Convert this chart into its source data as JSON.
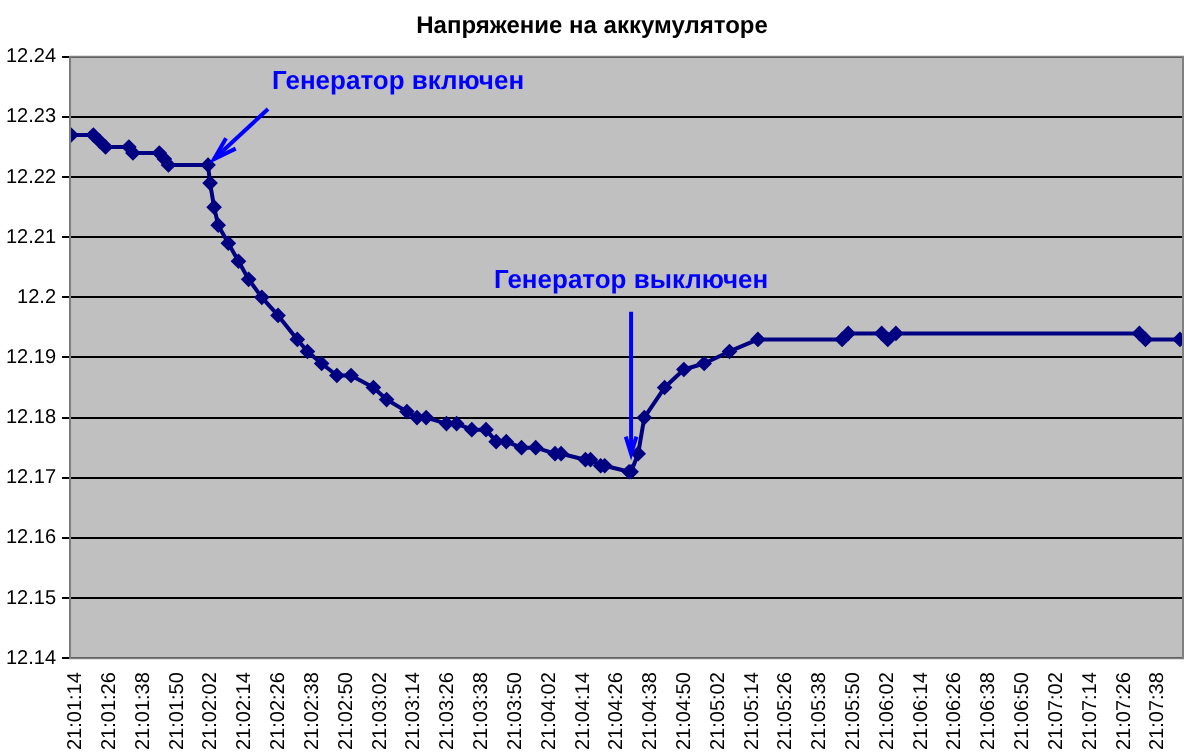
{
  "chart_data": {
    "type": "line",
    "title": "Напряжение на аккумуляторе",
    "x": [
      21.0201,
      21.0223,
      21.0229,
      21.0235,
      21.0258,
      21.0262,
      21.0288,
      21.0293,
      21.0297,
      21.0336,
      21.0338,
      21.0342,
      21.0346,
      21.0356,
      21.0366,
      21.0376,
      21.0389,
      21.0405,
      21.0424,
      21.0434,
      21.0448,
      21.0463,
      21.0477,
      21.0499,
      21.0512,
      21.0532,
      21.0542,
      21.0551,
      21.0571,
      21.0581,
      21.0596,
      21.061,
      21.062,
      21.063,
      21.0645,
      21.0659,
      21.0678,
      21.0684,
      21.0708,
      21.0713,
      21.0723,
      21.0727,
      21.0751,
      21.0753,
      21.076,
      21.0766,
      21.0786,
      21.0805,
      21.0825,
      21.085,
      21.0878,
      21.0961,
      21.0967,
      21.1,
      21.1006,
      21.1014,
      21.1254,
      21.126,
      21.1294
    ],
    "series": [
      {
        "color": "#000080",
        "values": [
          12.227,
          12.227,
          12.226,
          12.225,
          12.225,
          12.224,
          12.224,
          12.223,
          12.222,
          12.222,
          12.219,
          12.215,
          12.212,
          12.209,
          12.206,
          12.203,
          12.2,
          12.197,
          12.193,
          12.191,
          12.189,
          12.187,
          12.187,
          12.185,
          12.183,
          12.181,
          12.18,
          12.18,
          12.179,
          12.179,
          12.178,
          12.178,
          12.176,
          12.176,
          12.175,
          12.175,
          12.174,
          12.174,
          12.173,
          12.173,
          12.172,
          12.172,
          12.171,
          12.171,
          12.174,
          12.18,
          12.185,
          12.188,
          12.189,
          12.191,
          12.193,
          12.193,
          12.194,
          12.194,
          12.193,
          12.194,
          12.194,
          12.193,
          12.193
        ]
      }
    ],
    "xlim": [
      21.02,
      21.1297
    ],
    "xticks": [
      {
        "value": 21.02056,
        "label": "21:01:14"
      },
      {
        "value": 21.02389,
        "label": "21:01:26"
      },
      {
        "value": 21.02722,
        "label": "21:01:38"
      },
      {
        "value": 21.03056,
        "label": "21:01:50"
      },
      {
        "value": 21.03389,
        "label": "21:02:02"
      },
      {
        "value": 21.03722,
        "label": "21:02:14"
      },
      {
        "value": 21.04056,
        "label": "21:02:26"
      },
      {
        "value": 21.04389,
        "label": "21:02:38"
      },
      {
        "value": 21.04722,
        "label": "21:02:50"
      },
      {
        "value": 21.05056,
        "label": "21:03:02"
      },
      {
        "value": 21.05389,
        "label": "21:03:14"
      },
      {
        "value": 21.05722,
        "label": "21:03:26"
      },
      {
        "value": 21.06056,
        "label": "21:03:38"
      },
      {
        "value": 21.06389,
        "label": "21:03:50"
      },
      {
        "value": 21.06722,
        "label": "21:04:02"
      },
      {
        "value": 21.07056,
        "label": "21:04:14"
      },
      {
        "value": 21.07389,
        "label": "21:04:26"
      },
      {
        "value": 21.07722,
        "label": "21:04:38"
      },
      {
        "value": 21.08056,
        "label": "21:04:50"
      },
      {
        "value": 21.08389,
        "label": "21:05:02"
      },
      {
        "value": 21.08722,
        "label": "21:05:14"
      },
      {
        "value": 21.09056,
        "label": "21:05:26"
      },
      {
        "value": 21.09389,
        "label": "21:05:38"
      },
      {
        "value": 21.09722,
        "label": "21:05:50"
      },
      {
        "value": 21.10056,
        "label": "21:06:02"
      },
      {
        "value": 21.10389,
        "label": "21:06:14"
      },
      {
        "value": 21.10722,
        "label": "21:06:26"
      },
      {
        "value": 21.11056,
        "label": "21:06:38"
      },
      {
        "value": 21.11389,
        "label": "21:06:50"
      },
      {
        "value": 21.11722,
        "label": "21:07:02"
      },
      {
        "value": 21.12056,
        "label": "21:07:14"
      },
      {
        "value": 21.12389,
        "label": "21:07:26"
      },
      {
        "value": 21.12722,
        "label": "21:07:38"
      }
    ],
    "ylim": [
      12.14,
      12.24
    ],
    "yticks": [
      12.14,
      12.15,
      12.16,
      12.17,
      12.18,
      12.19,
      {
        "value": 12.2,
        "label": "12.2"
      },
      12.21,
      12.22,
      12.23,
      12.24
    ],
    "grid": "y",
    "legend": false,
    "marker": "diamond",
    "line_style": "solid",
    "annotations": [
      {
        "text": "Генератор включен",
        "x": 21.0336,
        "y": 12.222
      },
      {
        "text": "Генератор выключен",
        "x": 21.0753,
        "y": 12.171
      }
    ]
  }
}
